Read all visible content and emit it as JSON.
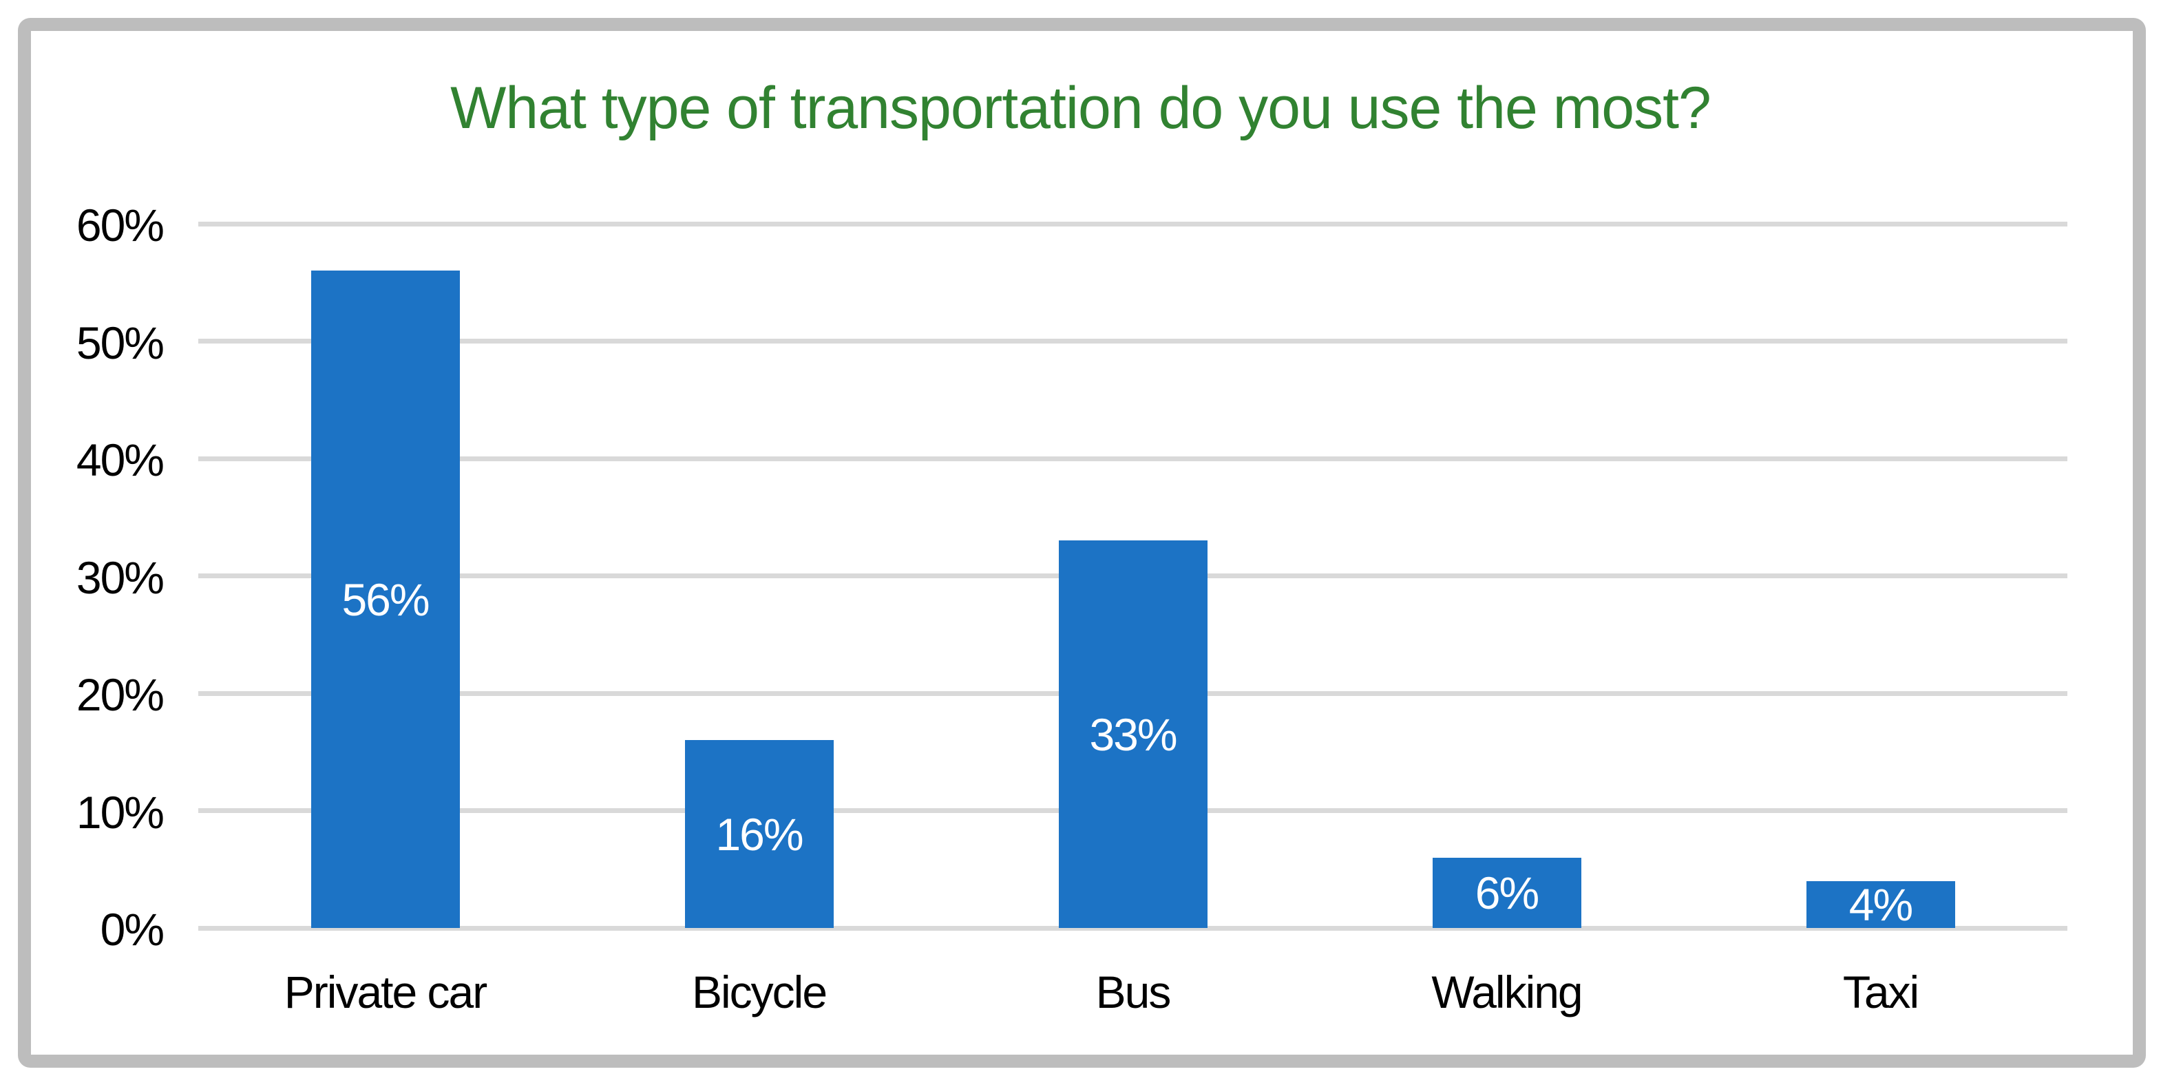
{
  "chart_data": {
    "type": "bar",
    "title": "What type of transportation do you use the most?",
    "categories": [
      "Private car",
      "Bicycle",
      "Bus",
      "Walking",
      "Taxi"
    ],
    "values": [
      56,
      16,
      33,
      6,
      4
    ],
    "value_labels": [
      "56%",
      "16%",
      "33%",
      "6%",
      "4%"
    ],
    "y_ticks": [
      "60%",
      "50%",
      "40%",
      "30%",
      "20%",
      "10%",
      "0%"
    ],
    "ylim": [
      0,
      60
    ],
    "y_tick_step": 10,
    "grid": "horizontal-only",
    "legend": "none",
    "value_label_position": "inside-center",
    "colors": {
      "bar": "#1C73C5",
      "bar_label": "#FFFFFF",
      "title": "#318231",
      "gridline": "#D9D9D9",
      "tick_label": "#000000",
      "frame_border": "#BDBDBD",
      "background": "#FFFFFF"
    }
  }
}
